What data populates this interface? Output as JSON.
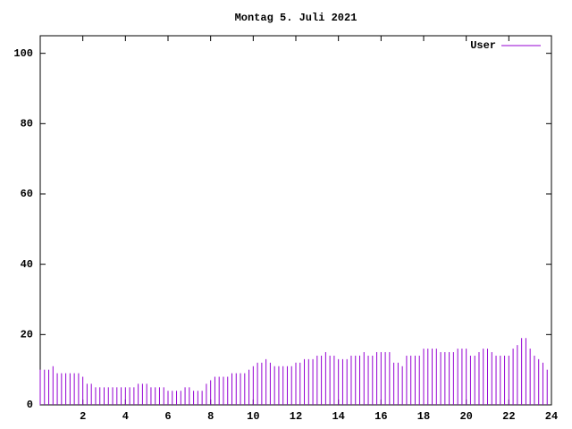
{
  "chart_data": {
    "type": "impulses",
    "title": "Montag 5. Juli 2021",
    "x": [
      0,
      0.2,
      0.4,
      0.6,
      0.8,
      1,
      1.2,
      1.4,
      1.6,
      1.8,
      2,
      2.2,
      2.4,
      2.6,
      2.8,
      3,
      3.2,
      3.4,
      3.6,
      3.8,
      4,
      4.2,
      4.4,
      4.6,
      4.8,
      5,
      5.2,
      5.4,
      5.6,
      5.8,
      6,
      6.2,
      6.4,
      6.6,
      6.8,
      7,
      7.2,
      7.4,
      7.6,
      7.8,
      8,
      8.2,
      8.4,
      8.6,
      8.8,
      9,
      9.2,
      9.4,
      9.6,
      9.8,
      10,
      10.2,
      10.4,
      10.6,
      10.8,
      11,
      11.2,
      11.4,
      11.6,
      11.8,
      12,
      12.2,
      12.4,
      12.6,
      12.8,
      13,
      13.2,
      13.4,
      13.6,
      13.8,
      14,
      14.2,
      14.4,
      14.6,
      14.8,
      15,
      15.2,
      15.4,
      15.6,
      15.8,
      16,
      16.2,
      16.4,
      16.6,
      16.8,
      17,
      17.2,
      17.4,
      17.6,
      17.8,
      18,
      18.2,
      18.4,
      18.6,
      18.8,
      19,
      19.2,
      19.4,
      19.6,
      19.8,
      20,
      20.2,
      20.4,
      20.6,
      20.8,
      21,
      21.2,
      21.4,
      21.6,
      21.8,
      22,
      22.2,
      22.4,
      22.6,
      22.8,
      23,
      23.2,
      23.4,
      23.6,
      23.8
    ],
    "series": [
      {
        "name": "User",
        "color": "#9400d3",
        "values": [
          10,
          10,
          10,
          11,
          9,
          9,
          9,
          9,
          9,
          9,
          8,
          6,
          6,
          5,
          5,
          5,
          5,
          5,
          5,
          5,
          5,
          5,
          5,
          6,
          6,
          6,
          5,
          5,
          5,
          5,
          4,
          4,
          4,
          4,
          5,
          5,
          4,
          4,
          4,
          6,
          7,
          8,
          8,
          8,
          8,
          9,
          9,
          9,
          9,
          10,
          11,
          12,
          12,
          13,
          12,
          11,
          11,
          11,
          11,
          11,
          12,
          12,
          13,
          13,
          13,
          14,
          14,
          15,
          14,
          14,
          13,
          13,
          13,
          14,
          14,
          14,
          15,
          14,
          14,
          15,
          15,
          15,
          15,
          12,
          12,
          11,
          14,
          14,
          14,
          14,
          16,
          16,
          16,
          16,
          15,
          15,
          15,
          15,
          16,
          16,
          16,
          14,
          14,
          15,
          16,
          16,
          15,
          14,
          14,
          14,
          14,
          16,
          17,
          19,
          19,
          16,
          14,
          13,
          12,
          10
        ]
      }
    ],
    "xlim": [
      0,
      24
    ],
    "xticks": [
      2,
      4,
      6,
      8,
      10,
      12,
      14,
      16,
      18,
      20,
      22,
      24
    ],
    "ylim": [
      0,
      105
    ],
    "yticks": [
      0,
      20,
      40,
      60,
      80,
      100
    ],
    "legend": "top-right"
  }
}
